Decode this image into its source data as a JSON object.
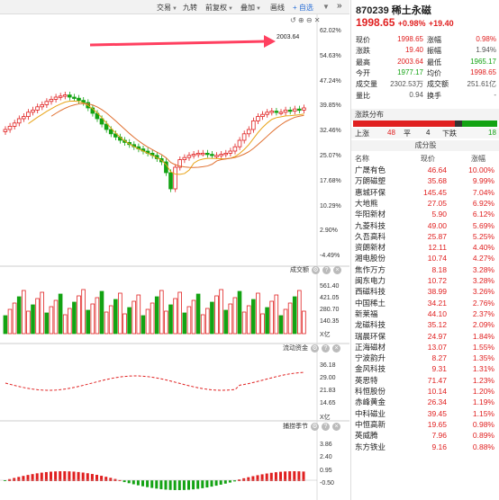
{
  "toolbar": {
    "items": [
      "交易",
      "九转",
      "前复权",
      "叠加",
      "画线"
    ],
    "add_label": "+ 自选",
    "collapse_icon": "double-chevron-right-icon"
  },
  "chart": {
    "price_axis": [
      "62.02%",
      "54.63%",
      "47.24%",
      "39.85%",
      "32.46%",
      "25.07%",
      "17.68%",
      "10.29%",
      "2.90%",
      "-4.49%"
    ],
    "annotation_value": "2003.64",
    "panels": [
      {
        "title": "成交额",
        "axis": [
          "561.40",
          "421.05",
          "280.70",
          "140.35",
          "X亿"
        ]
      },
      {
        "title": "流动资金",
        "axis": [
          "36.18",
          "29.00",
          "21.83",
          "14.65",
          "X亿"
        ]
      },
      {
        "title": "捕捞季节",
        "axis": [
          "3.86",
          "2.40",
          "0.95",
          "-0.50"
        ]
      }
    ]
  },
  "stock": {
    "code": "870239",
    "name": "稀土永磁",
    "price": "1998.65",
    "pct": "+0.98%",
    "chg": "+19.40"
  },
  "quote": [
    [
      {
        "l": "现价",
        "v": "1998.65",
        "c": "red"
      },
      {
        "l": "涨幅",
        "v": "0.98%",
        "c": "red"
      }
    ],
    [
      {
        "l": "涨跌",
        "v": "19.40",
        "c": "red"
      },
      {
        "l": "振幅",
        "v": "1.94%",
        "c": "gray"
      }
    ],
    [
      {
        "l": "最高",
        "v": "2003.64",
        "c": "red"
      },
      {
        "l": "最低",
        "v": "1965.17",
        "c": "green"
      }
    ],
    [
      {
        "l": "今开",
        "v": "1977.17",
        "c": "green"
      },
      {
        "l": "均价",
        "v": "1998.65",
        "c": "red"
      }
    ],
    [
      {
        "l": "成交量",
        "v": "2302.53万",
        "c": "gray"
      },
      {
        "l": "成交额",
        "v": "251.61亿",
        "c": "gray"
      }
    ],
    [
      {
        "l": "量比",
        "v": "0.94",
        "c": "gray"
      },
      {
        "l": "换手",
        "v": "-",
        "c": "gray"
      }
    ]
  ],
  "distribution": {
    "title": "涨跌分布",
    "up_label": "上涨",
    "up": "48",
    "flat_label": "平",
    "flat": "4",
    "down_label": "下跌",
    "down": "18"
  },
  "constituents": {
    "title": "成分股",
    "headers": [
      "名称",
      "现价",
      "涨幅"
    ],
    "rows": [
      [
        "广晟有色",
        "46.64",
        "10.00%"
      ],
      [
        "万朗磁塑",
        "35.68",
        "9.99%"
      ],
      [
        "惠城环保",
        "145.45",
        "7.04%"
      ],
      [
        "大地熊",
        "27.05",
        "6.92%"
      ],
      [
        "华阳新材",
        "5.90",
        "6.12%"
      ],
      [
        "九菱科技",
        "49.00",
        "5.69%"
      ],
      [
        "久吾高科",
        "25.87",
        "5.25%"
      ],
      [
        "资朗新材",
        "12.11",
        "4.40%"
      ],
      [
        "湘电股份",
        "10.74",
        "4.27%"
      ],
      [
        "焦作万方",
        "8.18",
        "3.28%"
      ],
      [
        "闽东电力",
        "10.72",
        "3.28%"
      ],
      [
        "西磁科技",
        "38.99",
        "3.26%"
      ],
      [
        "中国稀土",
        "34.21",
        "2.76%"
      ],
      [
        "新莱福",
        "44.10",
        "2.37%"
      ],
      [
        "龙磁科技",
        "35.12",
        "2.09%"
      ],
      [
        "瑞晨环保",
        "24.97",
        "1.84%"
      ],
      [
        "正海磁材",
        "13.07",
        "1.55%"
      ],
      [
        "宁波韵升",
        "8.27",
        "1.35%"
      ],
      [
        "金风科技",
        "9.31",
        "1.31%"
      ],
      [
        "英思特",
        "71.47",
        "1.23%"
      ],
      [
        "科恒股份",
        "10.14",
        "1.20%"
      ],
      [
        "赤峰黄金",
        "26.34",
        "1.19%"
      ],
      [
        "中科磁业",
        "39.45",
        "1.15%"
      ],
      [
        "中恒高新",
        "19.65",
        "0.98%"
      ],
      [
        "英威腾",
        "7.96",
        "0.89%"
      ],
      [
        "东方铁业",
        "9.16",
        "0.88%"
      ]
    ]
  },
  "colors": {
    "up": "#e02020",
    "down": "#13a313",
    "ma1": "#e8a317",
    "ma2": "#e07030",
    "arrow": "#ff4060"
  }
}
